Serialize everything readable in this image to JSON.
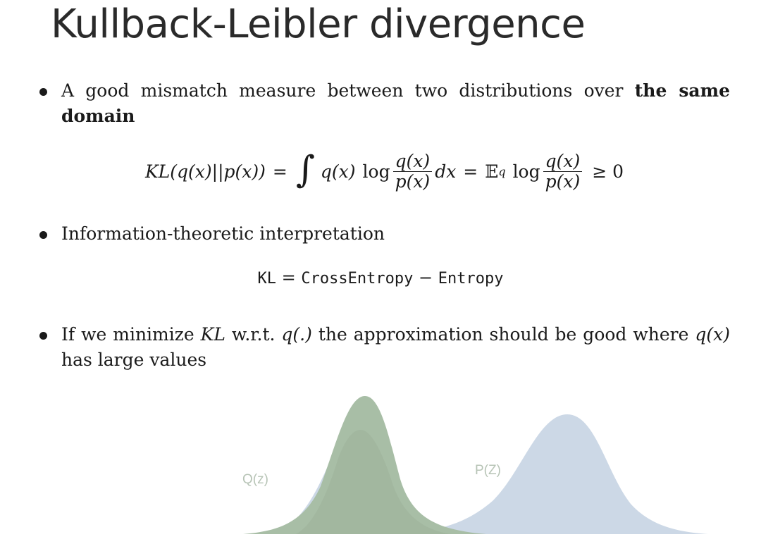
{
  "slide": {
    "title": "Kullback-Leibler divergence"
  },
  "bullets": {
    "b1": {
      "text_normal": "A good mismatch measure between two distributions over ",
      "text_bold": "the same domain"
    },
    "eq1": {
      "lhs_KL": "KL",
      "lhs_args": "(q(x)||p(x))",
      "equals1": "=",
      "integral": "∫",
      "qx": "q(x)",
      "log1": "log",
      "frac1_num": "q(x)",
      "frac1_den": "p(x)",
      "dx": "dx",
      "equals2": "=",
      "expect": "𝔼",
      "expect_sub": "q",
      "log2": "log",
      "frac2_num": "q(x)",
      "frac2_den": "p(x)",
      "geq": "≥ 0"
    },
    "b2": {
      "text": "Information-theoretic interpretation"
    },
    "eq2": {
      "kl": "KL",
      "eq": "=",
      "cross": "CrossEntropy",
      "minus": "−",
      "entropy": "Entropy"
    },
    "b3": {
      "t1": "If we minimize ",
      "kl": "KL",
      "t2": " w.r.t. ",
      "q": "q(.)",
      "t3": " the approximation should be good where ",
      "qx": "q(x)",
      "t4": " has large values"
    }
  },
  "figure": {
    "label_q": "Q(z)",
    "label_p": "P(Z)",
    "colors": {
      "q_fill": "#a8bea6",
      "p_fill": "#ccd8e6",
      "overlap": "#9fb49d",
      "label": "#b7c4b6"
    }
  }
}
